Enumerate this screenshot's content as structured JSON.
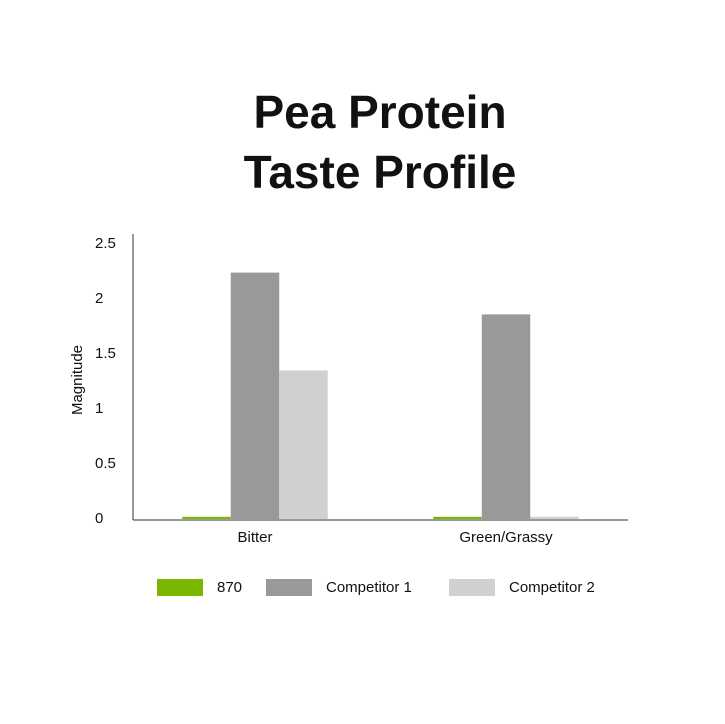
{
  "chart_data": {
    "type": "bar",
    "title": [
      "Pea Protein",
      "Taste Profile"
    ],
    "y_label": "Magnitude",
    "categories": [
      "Bitter",
      "Green/Grassy"
    ],
    "series": [
      {
        "name": "870",
        "color": "#7ab800",
        "values": [
          0.02,
          0.02
        ]
      },
      {
        "name": "Competitor 1",
        "color": "#999999",
        "values": [
          2.24,
          1.86
        ]
      },
      {
        "name": "Competitor 2",
        "color": "#d0d0d0",
        "values": [
          1.35,
          0.02
        ]
      }
    ],
    "ylim": [
      0,
      2.5
    ],
    "yticks": [
      0,
      0.5,
      1,
      1.5,
      2,
      2.5
    ]
  }
}
